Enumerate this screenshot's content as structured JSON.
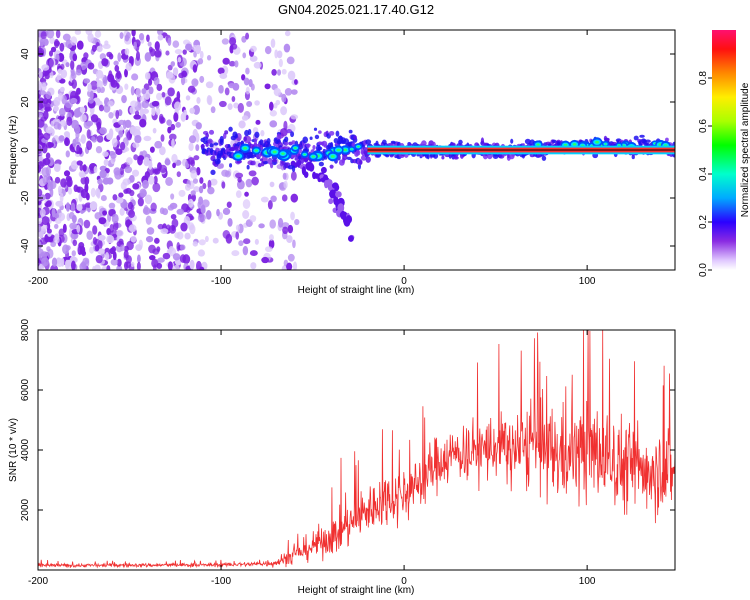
{
  "title": "GN04.2025.021.17.40.G12",
  "colors": {
    "line": "#f03030",
    "axis": "#000000",
    "scatter": "#8a2be2",
    "core": "#ff3030"
  },
  "chart_data": [
    {
      "type": "heatmap",
      "name": "spectrogram",
      "xlabel": "Height of straight line (km)",
      "ylabel": "Frequency (Hz)",
      "xlim": [
        -200,
        148
      ],
      "ylim": [
        -50,
        50
      ],
      "xticks": [
        -200,
        -100,
        0,
        100
      ],
      "yticks": [
        -40,
        -20,
        0,
        20,
        40
      ],
      "colorbar": {
        "label": "Normalized spectral amplitude",
        "range": [
          0,
          1
        ],
        "ticks": [
          "0.0",
          "0.2",
          "0.4",
          "0.6",
          "0.8"
        ],
        "tick_values": [
          0.0,
          0.2,
          0.4,
          0.6,
          0.8
        ]
      },
      "features": {
        "noise_region_x": [
          -200,
          -70
        ],
        "main_line_freq_hz": 0,
        "main_line_x": [
          -110,
          148
        ],
        "descending_branch": [
          [
            -60,
            -5
          ],
          [
            -45,
            -10
          ],
          [
            -38,
            -17
          ],
          [
            -35,
            -25
          ],
          [
            -28,
            -35
          ]
        ]
      }
    },
    {
      "type": "line",
      "name": "snr",
      "xlabel": "Height of straight line (km)",
      "ylabel": "SNR (10 * v/v)",
      "xlim": [
        -200,
        148
      ],
      "ylim": [
        0,
        8000
      ],
      "xticks": [
        -200,
        -100,
        0,
        100
      ],
      "yticks": [
        2000,
        4000,
        6000,
        8000
      ],
      "envelope_x": [
        -200,
        -150,
        -100,
        -80,
        -70,
        -60,
        -50,
        -40,
        -30,
        -20,
        -10,
        0,
        10,
        20,
        30,
        40,
        50,
        60,
        70,
        80,
        90,
        100,
        110,
        120,
        130,
        140,
        148
      ],
      "envelope_mean": [
        150,
        160,
        170,
        200,
        250,
        500,
        800,
        1100,
        1500,
        2000,
        2400,
        2500,
        3000,
        3700,
        3900,
        4000,
        4100,
        4000,
        4100,
        3900,
        3800,
        4000,
        3800,
        3500,
        3400,
        3400,
        3300
      ],
      "envelope_noise": [
        60,
        60,
        60,
        80,
        150,
        300,
        450,
        600,
        700,
        800,
        850,
        850,
        900,
        900,
        900,
        1000,
        1100,
        1200,
        1400,
        1500,
        1500,
        1600,
        1500,
        1500,
        1400,
        1400,
        1300
      ]
    }
  ],
  "layout_text": {
    "x_tick_labels": [
      "-200",
      "-100",
      "0",
      "100"
    ]
  }
}
